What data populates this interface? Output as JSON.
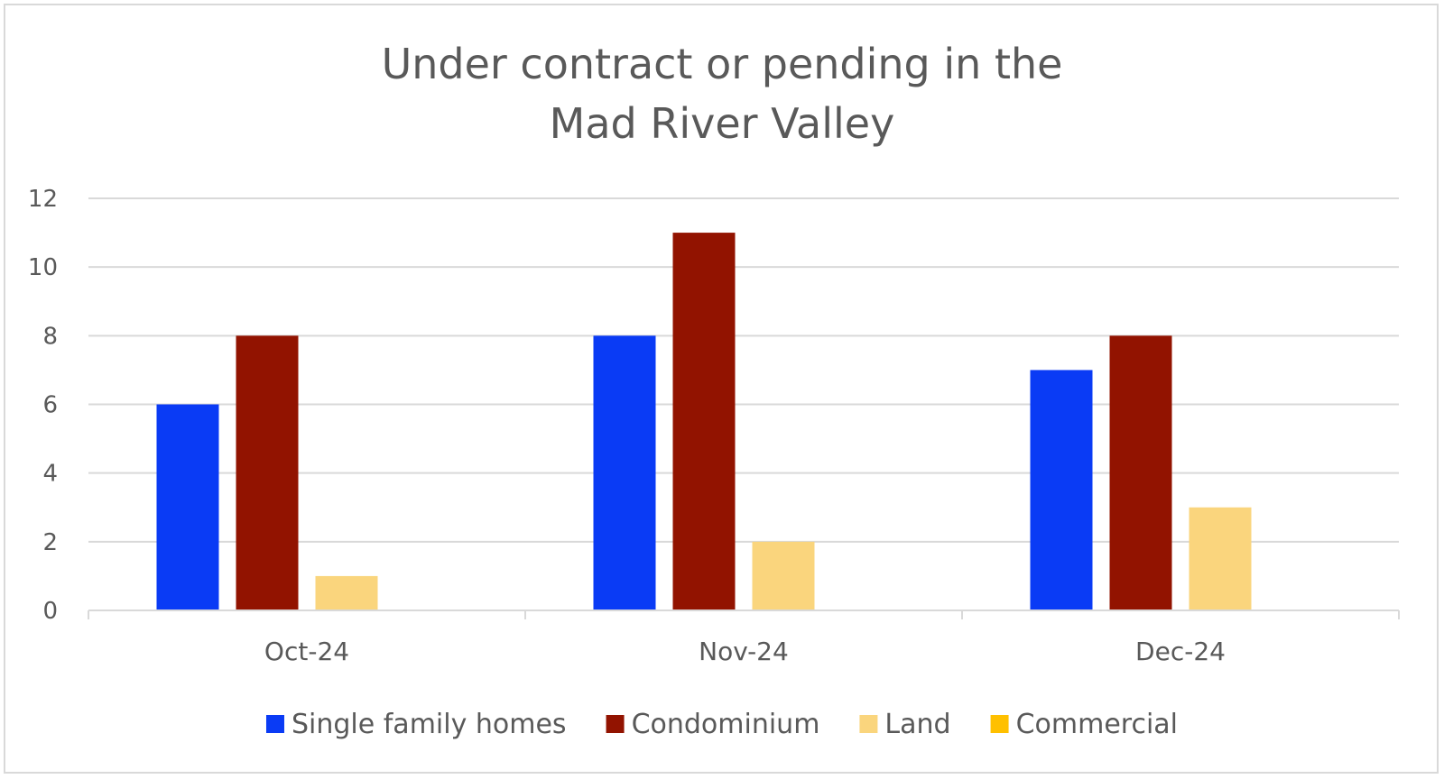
{
  "chart_data": {
    "type": "bar",
    "title_lines": [
      "Under contract or pending in the",
      "Mad River Valley"
    ],
    "categories": [
      "Oct-24",
      "Nov-24",
      "Dec-24"
    ],
    "series": [
      {
        "name": "Single family homes",
        "color": "#0A3BF5",
        "values": [
          6,
          8,
          7
        ]
      },
      {
        "name": "Condominium",
        "color": "#921300",
        "values": [
          8,
          11,
          8
        ]
      },
      {
        "name": "Land",
        "color": "#FAD57D",
        "values": [
          1,
          2,
          3
        ]
      },
      {
        "name": "Commercial",
        "color": "#FFC000",
        "values": [
          0,
          0,
          0
        ]
      }
    ],
    "ylim": [
      0,
      12
    ],
    "yticks": [
      "0",
      "2",
      "4",
      "6",
      "8",
      "10",
      "12"
    ],
    "grid": true,
    "legend_position": "bottom",
    "xlabel": "",
    "ylabel": ""
  }
}
